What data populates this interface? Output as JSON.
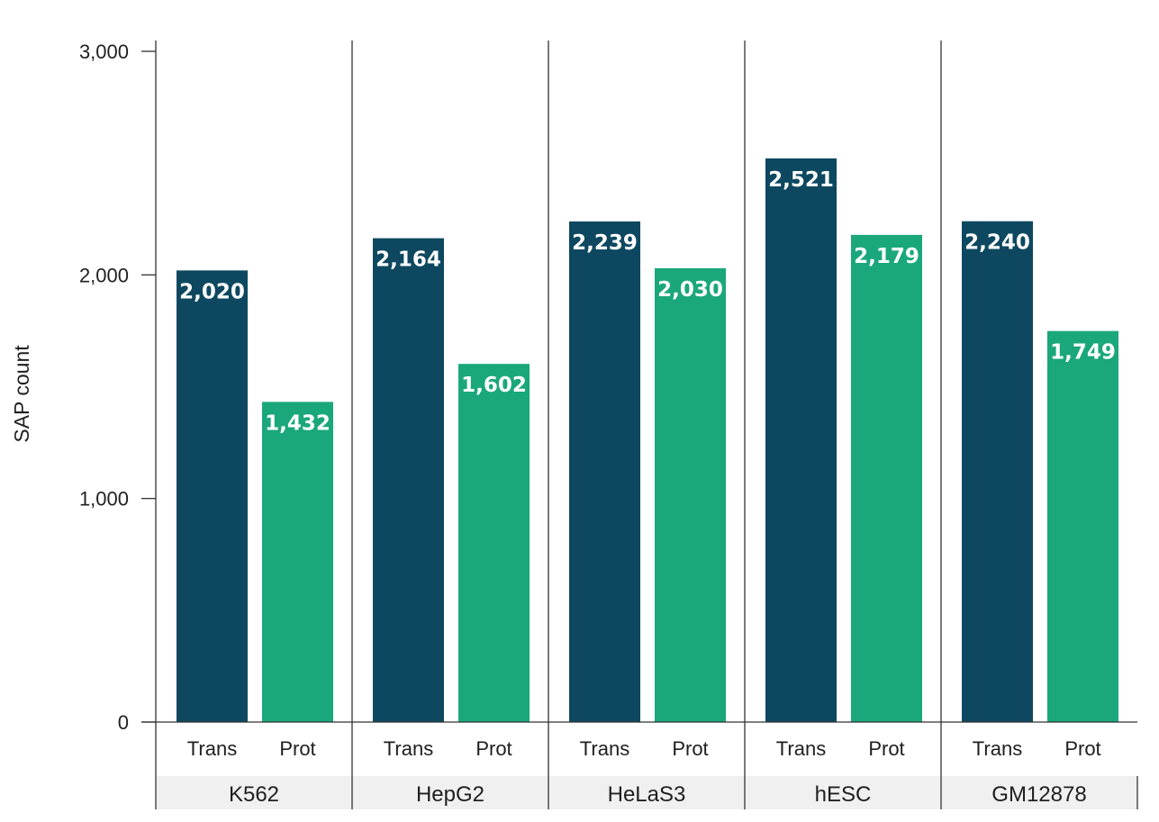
{
  "chart_data": {
    "type": "bar",
    "ylabel": "SAP count",
    "ylim": [
      0,
      3000
    ],
    "yticks": [
      {
        "value": 0,
        "label": "0"
      },
      {
        "value": 1000,
        "label": "1,000"
      },
      {
        "value": 2000,
        "label": "2,000"
      },
      {
        "value": 3000,
        "label": "3,000"
      }
    ],
    "groups": [
      {
        "name": "K562",
        "bars": [
          {
            "category": "Trans",
            "value": 2020,
            "label": "2,020"
          },
          {
            "category": "Prot",
            "value": 1432,
            "label": "1,432"
          }
        ]
      },
      {
        "name": "HepG2",
        "bars": [
          {
            "category": "Trans",
            "value": 2164,
            "label": "2,164"
          },
          {
            "category": "Prot",
            "value": 1602,
            "label": "1,602"
          }
        ]
      },
      {
        "name": "HeLaS3",
        "bars": [
          {
            "category": "Trans",
            "value": 2239,
            "label": "2,239"
          },
          {
            "category": "Prot",
            "value": 2030,
            "label": "2,030"
          }
        ]
      },
      {
        "name": "hESC",
        "bars": [
          {
            "category": "Trans",
            "value": 2521,
            "label": "2,521"
          },
          {
            "category": "Prot",
            "value": 2179,
            "label": "2,179"
          }
        ]
      },
      {
        "name": "GM12878",
        "bars": [
          {
            "category": "Trans",
            "value": 2240,
            "label": "2,240"
          },
          {
            "category": "Prot",
            "value": 1749,
            "label": "1,749"
          }
        ]
      }
    ],
    "colors": {
      "Trans": "#0d4860",
      "Prot": "#1aa77b",
      "group_band": "#f0f0f0",
      "axis": "#333333"
    },
    "grid": false
  }
}
